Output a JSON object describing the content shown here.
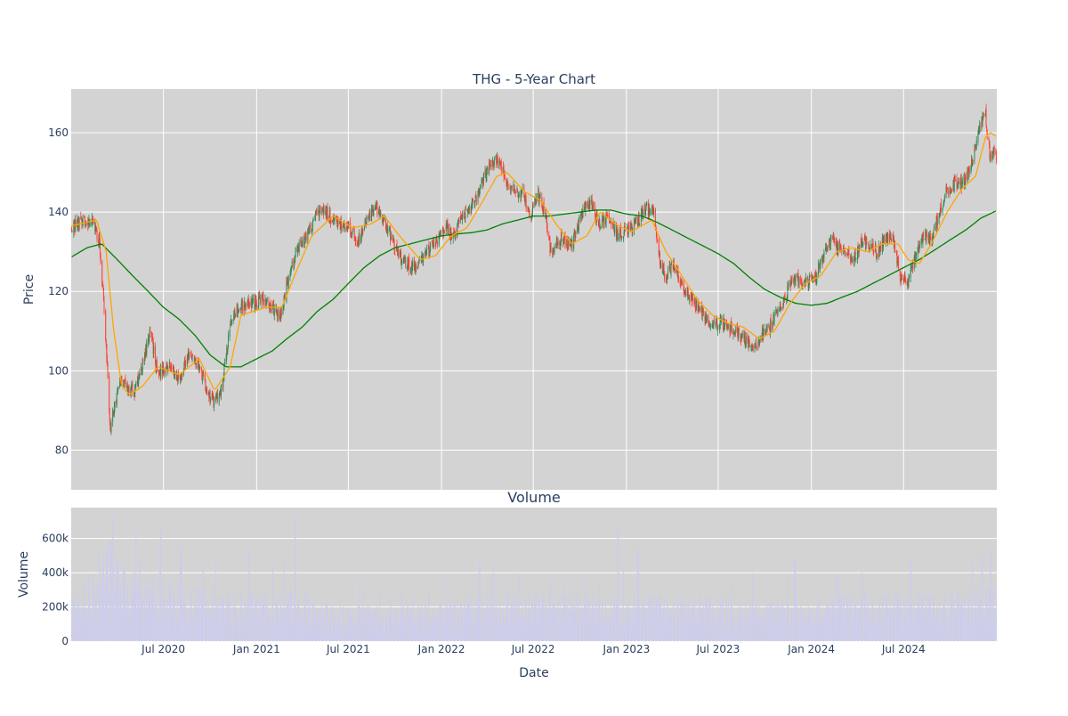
{
  "chart_data": [
    {
      "type": "candlestick",
      "title": "THG - 5-Year Chart",
      "xlabel": "",
      "ylabel": "Price",
      "ylim": [
        70,
        171
      ],
      "xlim": [
        "2020-01-01",
        "2025-01-01"
      ],
      "yticks": [
        80,
        100,
        120,
        140,
        160
      ],
      "xticks": [
        "2020-07-01",
        "2021-01-01",
        "2021-07-01",
        "2022-01-01",
        "2022-07-01",
        "2023-01-01",
        "2023-07-01",
        "2024-01-01",
        "2024-07-01"
      ],
      "grid": true,
      "background": "#d3d3d3",
      "colors": {
        "up": "#2e8b57",
        "down": "#ff4136",
        "ma_short": "#ffa500",
        "ma_long": "#008000"
      },
      "price_anchors": [
        [
          "2020-01-02",
          136
        ],
        [
          "2020-01-20",
          138
        ],
        [
          "2020-02-10",
          138
        ],
        [
          "2020-02-25",
          133
        ],
        [
          "2020-03-05",
          118
        ],
        [
          "2020-03-12",
          100
        ],
        [
          "2020-03-18",
          85
        ],
        [
          "2020-03-25",
          90
        ],
        [
          "2020-04-05",
          97
        ],
        [
          "2020-04-20",
          96
        ],
        [
          "2020-05-05",
          95
        ],
        [
          "2020-05-20",
          101
        ],
        [
          "2020-06-05",
          110
        ],
        [
          "2020-06-20",
          99
        ],
        [
          "2020-07-10",
          101
        ],
        [
          "2020-08-01",
          98
        ],
        [
          "2020-08-20",
          104
        ],
        [
          "2020-09-10",
          101
        ],
        [
          "2020-09-25",
          95
        ],
        [
          "2020-10-10",
          92
        ],
        [
          "2020-10-25",
          96
        ],
        [
          "2020-11-10",
          112
        ],
        [
          "2020-12-01",
          116
        ],
        [
          "2020-12-20",
          117
        ],
        [
          "2021-01-10",
          118
        ],
        [
          "2021-02-01",
          116
        ],
        [
          "2021-02-15",
          113
        ],
        [
          "2021-03-01",
          121
        ],
        [
          "2021-03-20",
          130
        ],
        [
          "2021-04-10",
          134
        ],
        [
          "2021-05-05",
          140
        ],
        [
          "2021-05-25",
          139
        ],
        [
          "2021-06-10",
          137
        ],
        [
          "2021-07-01",
          136
        ],
        [
          "2021-07-20",
          133
        ],
        [
          "2021-08-10",
          139
        ],
        [
          "2021-08-25",
          141
        ],
        [
          "2021-09-10",
          138
        ],
        [
          "2021-10-01",
          131
        ],
        [
          "2021-10-20",
          127
        ],
        [
          "2021-11-10",
          126
        ],
        [
          "2021-12-01",
          129
        ],
        [
          "2021-12-20",
          133
        ],
        [
          "2022-01-10",
          136
        ],
        [
          "2022-01-25",
          134
        ],
        [
          "2022-02-10",
          139
        ],
        [
          "2022-03-01",
          141
        ],
        [
          "2022-03-20",
          147
        ],
        [
          "2022-04-05",
          151
        ],
        [
          "2022-04-20",
          153
        ],
        [
          "2022-05-10",
          148
        ],
        [
          "2022-05-25",
          145
        ],
        [
          "2022-06-10",
          145
        ],
        [
          "2022-06-25",
          139
        ],
        [
          "2022-07-10",
          145
        ],
        [
          "2022-07-25",
          139
        ],
        [
          "2022-08-05",
          130
        ],
        [
          "2022-08-25",
          133
        ],
        [
          "2022-09-15",
          132
        ],
        [
          "2022-10-05",
          140
        ],
        [
          "2022-10-25",
          142
        ],
        [
          "2022-11-10",
          137
        ],
        [
          "2022-11-25",
          139
        ],
        [
          "2022-12-15",
          134
        ],
        [
          "2023-01-10",
          136
        ],
        [
          "2023-01-25",
          138
        ],
        [
          "2023-02-10",
          141
        ],
        [
          "2023-02-25",
          139
        ],
        [
          "2023-03-10",
          126
        ],
        [
          "2023-03-20",
          124
        ],
        [
          "2023-04-05",
          127
        ],
        [
          "2023-04-20",
          121
        ],
        [
          "2023-05-10",
          118
        ],
        [
          "2023-05-25",
          116
        ],
        [
          "2023-06-15",
          112
        ],
        [
          "2023-07-10",
          112
        ],
        [
          "2023-08-05",
          110
        ],
        [
          "2023-08-25",
          108
        ],
        [
          "2023-09-10",
          106
        ],
        [
          "2023-09-25",
          109
        ],
        [
          "2023-10-10",
          111
        ],
        [
          "2023-10-25",
          115
        ],
        [
          "2023-11-10",
          118
        ],
        [
          "2023-11-25",
          124
        ],
        [
          "2023-12-10",
          122
        ],
        [
          "2023-12-25",
          122
        ],
        [
          "2024-01-10",
          124
        ],
        [
          "2024-01-25",
          129
        ],
        [
          "2024-02-10",
          133
        ],
        [
          "2024-02-25",
          131
        ],
        [
          "2024-03-10",
          130
        ],
        [
          "2024-03-25",
          128
        ],
        [
          "2024-04-10",
          133
        ],
        [
          "2024-04-25",
          131
        ],
        [
          "2024-05-10",
          130
        ],
        [
          "2024-05-25",
          133
        ],
        [
          "2024-06-10",
          134
        ],
        [
          "2024-06-25",
          123
        ],
        [
          "2024-07-10",
          123
        ],
        [
          "2024-07-25",
          129
        ],
        [
          "2024-08-10",
          134
        ],
        [
          "2024-08-25",
          133
        ],
        [
          "2024-09-10",
          140
        ],
        [
          "2024-09-25",
          146
        ],
        [
          "2024-10-10",
          147
        ],
        [
          "2024-10-25",
          147
        ],
        [
          "2024-11-10",
          151
        ],
        [
          "2024-11-20",
          156
        ],
        [
          "2024-12-01",
          163
        ],
        [
          "2024-12-10",
          164
        ],
        [
          "2024-12-18",
          155
        ],
        [
          "2024-12-31",
          154
        ]
      ],
      "ma_short_anchors": [
        [
          "2020-01-02",
          136.5
        ],
        [
          "2020-02-20",
          138
        ],
        [
          "2020-03-10",
          130
        ],
        [
          "2020-03-25",
          110
        ],
        [
          "2020-04-10",
          96
        ],
        [
          "2020-04-25",
          94
        ],
        [
          "2020-05-20",
          96
        ],
        [
          "2020-06-20",
          101
        ],
        [
          "2020-08-01",
          99
        ],
        [
          "2020-09-10",
          103
        ],
        [
          "2020-10-10",
          95
        ],
        [
          "2020-11-10",
          101
        ],
        [
          "2020-12-01",
          114
        ],
        [
          "2021-01-20",
          116
        ],
        [
          "2021-02-20",
          116
        ],
        [
          "2021-03-20",
          125
        ],
        [
          "2021-04-20",
          134
        ],
        [
          "2021-06-01",
          139
        ],
        [
          "2021-07-10",
          136
        ],
        [
          "2021-08-15",
          137
        ],
        [
          "2021-09-10",
          139
        ],
        [
          "2021-10-10",
          134
        ],
        [
          "2021-11-20",
          128
        ],
        [
          "2021-12-20",
          129
        ],
        [
          "2022-01-20",
          134
        ],
        [
          "2022-02-20",
          136
        ],
        [
          "2022-03-20",
          142
        ],
        [
          "2022-04-20",
          149
        ],
        [
          "2022-05-10",
          150
        ],
        [
          "2022-06-15",
          145
        ],
        [
          "2022-07-15",
          143
        ],
        [
          "2022-08-15",
          137
        ],
        [
          "2022-09-15",
          132
        ],
        [
          "2022-10-15",
          134
        ],
        [
          "2022-11-10",
          140
        ],
        [
          "2022-12-10",
          137
        ],
        [
          "2023-01-10",
          135
        ],
        [
          "2023-02-20",
          138
        ],
        [
          "2023-03-20",
          130
        ],
        [
          "2023-04-20",
          124
        ],
        [
          "2023-05-20",
          118
        ],
        [
          "2023-06-20",
          114
        ],
        [
          "2023-07-20",
          112
        ],
        [
          "2023-08-20",
          111
        ],
        [
          "2023-09-20",
          108
        ],
        [
          "2023-10-20",
          110
        ],
        [
          "2023-11-20",
          117
        ],
        [
          "2023-12-20",
          122
        ],
        [
          "2024-01-20",
          124
        ],
        [
          "2024-02-20",
          130
        ],
        [
          "2024-03-20",
          131
        ],
        [
          "2024-04-20",
          130
        ],
        [
          "2024-05-20",
          132
        ],
        [
          "2024-06-20",
          132
        ],
        [
          "2024-07-10",
          128
        ],
        [
          "2024-08-01",
          127
        ],
        [
          "2024-08-25",
          132
        ],
        [
          "2024-09-25",
          140
        ],
        [
          "2024-10-25",
          146
        ],
        [
          "2024-11-20",
          149
        ],
        [
          "2024-12-10",
          159
        ],
        [
          "2024-12-20",
          160
        ],
        [
          "2024-12-31",
          159
        ]
      ],
      "ma_long_anchors": [
        [
          "2020-01-02",
          128.7
        ],
        [
          "2020-02-01",
          131
        ],
        [
          "2020-03-01",
          132
        ],
        [
          "2020-04-01",
          128
        ],
        [
          "2020-05-01",
          124
        ],
        [
          "2020-06-01",
          120
        ],
        [
          "2020-07-01",
          116
        ],
        [
          "2020-08-01",
          113
        ],
        [
          "2020-09-01",
          109
        ],
        [
          "2020-10-01",
          104
        ],
        [
          "2020-11-01",
          101
        ],
        [
          "2020-12-01",
          101
        ],
        [
          "2021-01-01",
          103
        ],
        [
          "2021-02-01",
          105
        ],
        [
          "2021-03-01",
          108
        ],
        [
          "2021-04-01",
          111
        ],
        [
          "2021-05-01",
          115
        ],
        [
          "2021-06-01",
          118
        ],
        [
          "2021-07-01",
          122
        ],
        [
          "2021-08-01",
          126
        ],
        [
          "2021-09-01",
          129
        ],
        [
          "2021-10-01",
          131
        ],
        [
          "2021-11-01",
          132
        ],
        [
          "2021-12-01",
          133
        ],
        [
          "2022-01-01",
          134
        ],
        [
          "2022-02-01",
          134.5
        ],
        [
          "2022-03-01",
          134.8
        ],
        [
          "2022-04-01",
          135.5
        ],
        [
          "2022-05-01",
          137
        ],
        [
          "2022-06-01",
          138
        ],
        [
          "2022-07-01",
          139
        ],
        [
          "2022-08-01",
          139
        ],
        [
          "2022-09-01",
          139.5
        ],
        [
          "2022-10-01",
          140
        ],
        [
          "2022-11-01",
          140.5
        ],
        [
          "2022-12-01",
          140.5
        ],
        [
          "2023-01-01",
          139.5
        ],
        [
          "2023-02-01",
          139
        ],
        [
          "2023-03-01",
          137.5
        ],
        [
          "2023-04-01",
          135.5
        ],
        [
          "2023-05-01",
          133.5
        ],
        [
          "2023-06-01",
          131.5
        ],
        [
          "2023-07-01",
          129.5
        ],
        [
          "2023-08-01",
          127
        ],
        [
          "2023-09-01",
          123.5
        ],
        [
          "2023-10-01",
          120.5
        ],
        [
          "2023-11-01",
          118.5
        ],
        [
          "2023-12-01",
          117
        ],
        [
          "2024-01-01",
          116.5
        ],
        [
          "2024-02-01",
          117
        ],
        [
          "2024-03-01",
          118.5
        ],
        [
          "2024-04-01",
          120
        ],
        [
          "2024-05-01",
          122
        ],
        [
          "2024-06-01",
          124
        ],
        [
          "2024-07-01",
          126
        ],
        [
          "2024-08-01",
          128
        ],
        [
          "2024-09-01",
          130.5
        ],
        [
          "2024-10-01",
          133
        ],
        [
          "2024-11-01",
          135.5
        ],
        [
          "2024-12-01",
          138.5
        ],
        [
          "2024-12-31",
          140.3
        ]
      ]
    },
    {
      "type": "bar",
      "title": "Volume",
      "xlabel": "Date",
      "ylabel": "Volume",
      "ylim": [
        0,
        780000
      ],
      "yticks": [
        0,
        200000,
        400000,
        600000
      ],
      "ytick_labels": [
        "0",
        "200k",
        "400k",
        "600k"
      ],
      "xticks": [
        "2020-07-01",
        "2021-01-01",
        "2021-07-01",
        "2022-01-01",
        "2022-07-01",
        "2023-01-01",
        "2023-07-01",
        "2024-01-01",
        "2024-07-01"
      ],
      "xtick_labels": [
        "Jul 2020",
        "Jan 2021",
        "Jul 2021",
        "Jan 2022",
        "Jul 2022",
        "Jan 2023",
        "Jul 2023",
        "Jan 2024",
        "Jul 2024"
      ],
      "grid": true,
      "bar_color": "#ccccee",
      "background": "#d3d3d3",
      "volume_level_anchors": [
        [
          "2020-01-02",
          180000
        ],
        [
          "2020-03-15",
          400000
        ],
        [
          "2020-05-01",
          300000
        ],
        [
          "2020-08-01",
          240000
        ],
        [
          "2020-11-01",
          200000
        ],
        [
          "2021-02-01",
          220000
        ],
        [
          "2021-05-01",
          170000
        ],
        [
          "2021-09-01",
          140000
        ],
        [
          "2022-01-01",
          160000
        ],
        [
          "2022-04-01",
          200000
        ],
        [
          "2022-07-01",
          210000
        ],
        [
          "2022-10-01",
          190000
        ],
        [
          "2023-01-01",
          180000
        ],
        [
          "2023-05-01",
          200000
        ],
        [
          "2023-09-01",
          180000
        ],
        [
          "2024-01-01",
          180000
        ],
        [
          "2024-06-01",
          200000
        ],
        [
          "2024-12-31",
          230000
        ]
      ],
      "volume_spikes": [
        [
          "2020-03-12",
          560000
        ],
        [
          "2020-03-19",
          590000
        ],
        [
          "2020-04-01",
          470000
        ],
        [
          "2020-05-15",
          480000
        ],
        [
          "2020-06-26",
          670000
        ],
        [
          "2020-08-05",
          550000
        ],
        [
          "2020-09-18",
          430000
        ],
        [
          "2020-12-18",
          520000
        ],
        [
          "2021-03-19",
          720000
        ],
        [
          "2022-03-18",
          460000
        ],
        [
          "2022-12-16",
          660000
        ],
        [
          "2023-01-24",
          540000
        ],
        [
          "2023-11-30",
          480000
        ],
        [
          "2024-07-15",
          490000
        ],
        [
          "2024-12-20",
          540000
        ]
      ]
    }
  ]
}
